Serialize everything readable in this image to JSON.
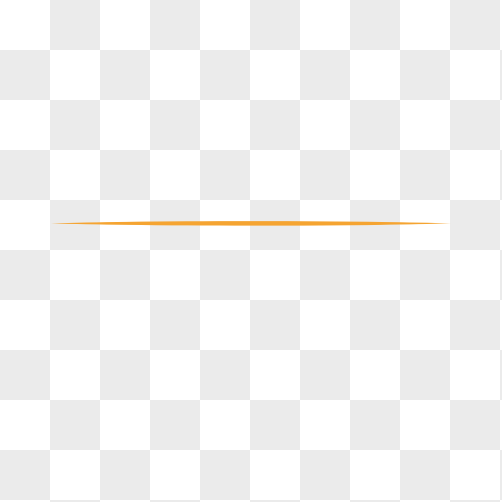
{
  "canvas": {
    "background": "transparency-checkerboard",
    "checker_light": "#ffffff",
    "checker_dark": "#ebebeb"
  },
  "graphic": {
    "shape": "tapered-horizontal-line",
    "color": "#f5a431"
  }
}
